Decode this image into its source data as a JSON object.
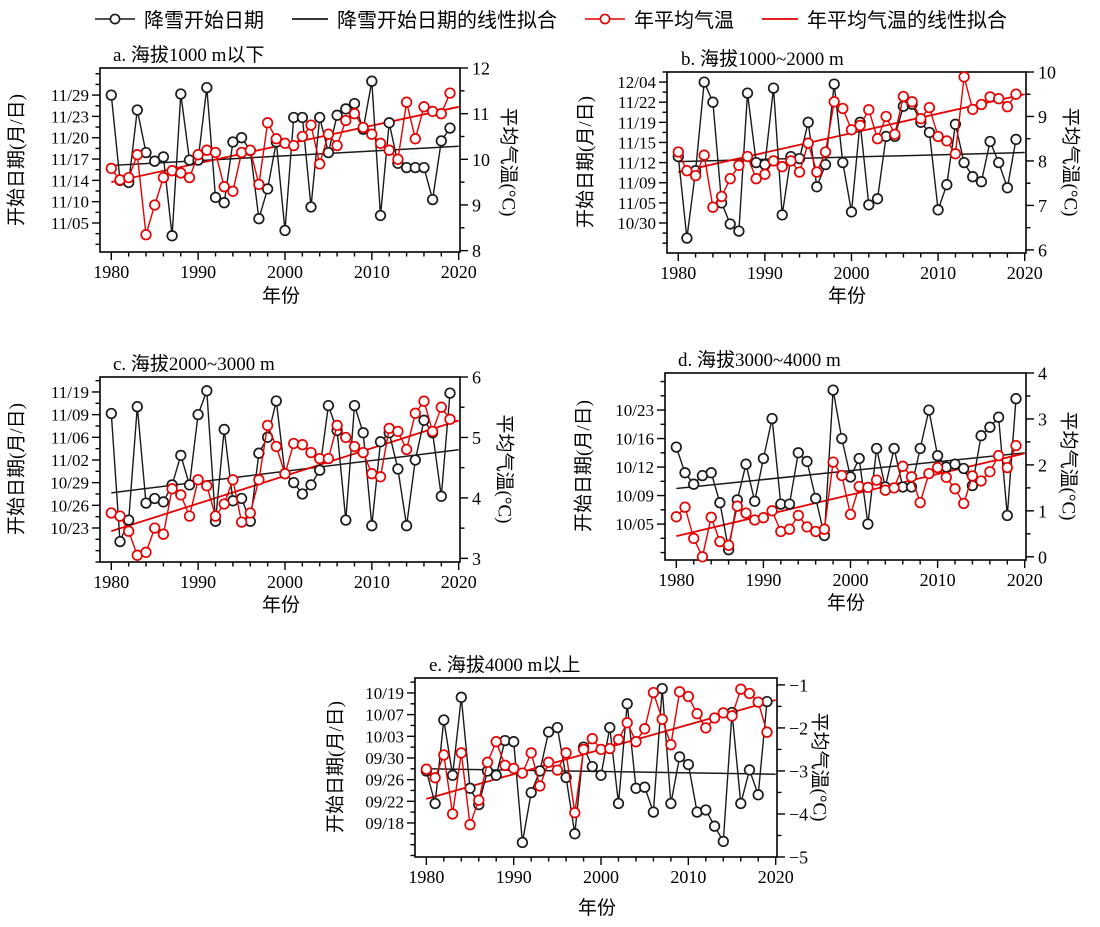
{
  "colors": {
    "snow": "#1a1a1a",
    "temp": "#e60000",
    "axis": "#000000"
  },
  "legend": {
    "items": [
      {
        "label": "降雪开始日期",
        "type": "line-circle",
        "color": "#1a1a1a"
      },
      {
        "label": "降雪开始日期的线性拟合",
        "type": "line",
        "color": "#1a1a1a"
      },
      {
        "label": "年平均气温",
        "type": "line-circle",
        "color": "#e60000"
      },
      {
        "label": "年平均气温的线性拟合",
        "type": "line",
        "color": "#e60000"
      }
    ]
  },
  "chart_data": [
    {
      "id": "a",
      "type": "line",
      "title": "a. 海拔1000 m以下",
      "xlabel": "年份",
      "ylabel_left": "开始日期(月/日)",
      "ylabel_right": "平均气温(°C)",
      "x_ticks": [
        1980,
        1990,
        2000,
        2010,
        2020
      ],
      "x_range": [
        1978.7,
        2020.15
      ],
      "date_tick_labels": [
        "11/05",
        "11/10",
        "11/14",
        "11/17",
        "11/20",
        "11/23",
        "11/29"
      ],
      "date_range": [
        -1.36,
        7.27
      ],
      "temp_ticks": [
        8,
        9,
        10,
        11,
        12
      ],
      "temp_range": [
        7.97,
        12.0
      ],
      "year_start": 1980,
      "snow_date_series_tick_units": [
        6.0,
        2.0,
        1.9,
        5.3,
        3.3,
        2.9,
        3.1,
        -0.6,
        6.05,
        2.95,
        2.95,
        6.35,
        1.2,
        0.95,
        3.8,
        4.0,
        3.4,
        0.2,
        1.6,
        3.8,
        -0.35,
        4.95,
        4.95,
        0.75,
        4.95,
        3.3,
        5.05,
        5.35,
        5.6,
        4.4,
        6.65,
        0.35,
        4.7,
        2.8,
        2.6,
        2.6,
        2.6,
        1.1,
        3.85,
        4.45
      ],
      "temp_series_c": [
        9.8,
        9.55,
        9.6,
        10.1,
        8.35,
        9.0,
        9.6,
        9.75,
        9.7,
        9.6,
        10.1,
        10.2,
        10.15,
        9.4,
        9.3,
        10.15,
        10.2,
        9.45,
        10.8,
        10.45,
        10.35,
        10.3,
        10.5,
        10.75,
        9.9,
        10.55,
        10.3,
        10.85,
        11.0,
        10.7,
        10.55,
        10.35,
        10.2,
        10.0,
        11.25,
        10.45,
        11.15,
        11.05,
        11.0,
        11.45
      ],
      "snow_fit_1980_2020": [
        2.7,
        3.6
      ],
      "temp_fit_1980_2020": [
        9.5,
        11.15
      ]
    },
    {
      "id": "b",
      "type": "line",
      "title": "b. 海拔1000~2000 m",
      "xlabel": "年份",
      "ylabel_left": "开始日期(月/日)",
      "ylabel_right": "平均气温(°C)",
      "x_ticks": [
        1980,
        1990,
        2000,
        2010,
        2020
      ],
      "x_range": [
        1978.7,
        2020.15
      ],
      "date_tick_labels": [
        "10/30",
        "11/05",
        "11/09",
        "11/12",
        "11/15",
        "11/19",
        "11/22",
        "12/04"
      ],
      "date_range": [
        -1.49,
        7.5
      ],
      "temp_ticks": [
        6,
        7,
        8,
        9,
        10
      ],
      "temp_range": [
        5.93,
        10.0
      ],
      "year_start": 1980,
      "snow_date_series_tick_units": [
        3.3,
        -0.75,
        2.6,
        7.0,
        6.0,
        1.0,
        -0.05,
        -0.4,
        6.45,
        3.0,
        2.9,
        6.7,
        0.4,
        3.3,
        3.2,
        5.0,
        1.8,
        2.9,
        6.9,
        3.0,
        0.55,
        5.0,
        0.9,
        1.2,
        4.3,
        4.3,
        5.8,
        5.9,
        5.0,
        4.5,
        0.65,
        1.9,
        4.9,
        3.0,
        2.3,
        2.05,
        4.05,
        3.0,
        1.75,
        4.15
      ],
      "temp_series_c": [
        8.2,
        7.78,
        7.67,
        8.13,
        6.96,
        7.2,
        7.6,
        7.9,
        8.1,
        7.6,
        7.7,
        8.0,
        7.87,
        8.0,
        7.75,
        8.4,
        7.75,
        8.2,
        9.33,
        9.18,
        8.7,
        8.8,
        9.15,
        8.5,
        9.0,
        8.6,
        9.45,
        9.33,
        8.95,
        9.2,
        8.55,
        8.45,
        8.16,
        9.89,
        9.16,
        9.27,
        9.44,
        9.4,
        9.22,
        9.5
      ],
      "snow_fit_1980_2020": [
        3.05,
        3.5
      ],
      "temp_fit_1980_2020": [
        7.75,
        9.5
      ]
    },
    {
      "id": "c",
      "type": "line",
      "title": "c. 海拔2000~3000 m",
      "xlabel": "年份",
      "ylabel_left": "开始日期(月/日)",
      "ylabel_right": "平均气温(°C)",
      "x_ticks": [
        1980,
        1990,
        2000,
        2010,
        2020
      ],
      "x_range": [
        1978.7,
        2020.15
      ],
      "date_tick_labels": [
        "10/23",
        "10/26",
        "10/29",
        "11/02",
        "11/06",
        "11/09",
        "11/19"
      ],
      "date_range": [
        -1.5,
        6.66
      ],
      "temp_ticks": [
        3,
        4,
        5,
        6
      ],
      "temp_range": [
        2.94,
        6.0
      ],
      "year_start": 1980,
      "snow_date_series_tick_units": [
        5.05,
        -0.6,
        0.35,
        5.35,
        1.1,
        1.3,
        1.15,
        1.9,
        3.2,
        1.9,
        5.0,
        6.05,
        0.3,
        4.35,
        1.2,
        1.3,
        0.3,
        3.3,
        4.0,
        5.6,
        2.4,
        2.0,
        1.5,
        1.9,
        2.55,
        5.4,
        4.3,
        0.35,
        5.4,
        4.2,
        0.1,
        3.8,
        4.2,
        2.6,
        0.1,
        3.0,
        4.75,
        4.2,
        1.4,
        5.95
      ],
      "temp_series_c": [
        3.75,
        3.7,
        3.45,
        3.05,
        3.1,
        3.5,
        3.4,
        4.15,
        4.05,
        3.7,
        4.3,
        4.2,
        3.7,
        3.9,
        4.3,
        3.6,
        3.75,
        4.3,
        5.2,
        4.85,
        4.4,
        4.9,
        4.88,
        4.75,
        4.65,
        4.65,
        5.2,
        5.0,
        4.85,
        4.75,
        4.4,
        4.35,
        5.15,
        5.1,
        4.8,
        5.4,
        5.6,
        5.1,
        5.5,
        5.3
      ],
      "snow_fit_1980_2020": [
        1.55,
        3.45
      ],
      "temp_fit_1980_2020": [
        3.45,
        5.28
      ]
    },
    {
      "id": "d",
      "type": "line",
      "title": "d. 海拔3000~4000 m",
      "xlabel": "年份",
      "ylabel_left": "开始日期(月/日)",
      "ylabel_right": "平均气温(°C)",
      "x_ticks": [
        1980,
        1990,
        2000,
        2010,
        2020
      ],
      "x_range": [
        1978.7,
        2020.15
      ],
      "date_tick_labels": [
        "10/05",
        "10/09",
        "10/12",
        "10/16",
        "10/23"
      ],
      "date_range": [
        -1.26,
        5.3
      ],
      "temp_ticks": [
        0,
        1,
        2,
        3,
        4
      ],
      "temp_range": [
        -0.07,
        4.0
      ],
      "year_start": 1980,
      "snow_date_series_tick_units": [
        2.7,
        1.8,
        1.4,
        1.7,
        1.8,
        0.75,
        -0.9,
        0.85,
        2.1,
        0.8,
        2.3,
        3.7,
        0.7,
        0.7,
        2.5,
        2.2,
        0.9,
        -0.4,
        4.7,
        3.0,
        1.65,
        2.3,
        0.0,
        2.65,
        1.3,
        2.65,
        1.3,
        1.3,
        2.65,
        4.0,
        2.4,
        2.0,
        2.1,
        1.95,
        1.35,
        3.1,
        3.4,
        3.75,
        0.3,
        4.4
      ],
      "temp_series_c": [
        0.87,
        1.08,
        0.4,
        0.0,
        0.86,
        0.33,
        0.25,
        1.1,
        0.95,
        0.8,
        0.85,
        1.0,
        0.55,
        0.6,
        0.9,
        0.65,
        0.55,
        0.6,
        2.06,
        1.77,
        0.92,
        1.53,
        1.51,
        1.67,
        1.45,
        1.5,
        1.97,
        1.74,
        1.18,
        1.81,
        1.94,
        1.73,
        1.48,
        1.16,
        1.76,
        1.65,
        1.85,
        2.2,
        1.94,
        2.42
      ],
      "snow_fit_1980_2020": [
        1.25,
        2.5
      ],
      "temp_fit_1980_2020": [
        0.45,
        2.25
      ]
    },
    {
      "id": "e",
      "type": "line",
      "title": "e. 海拔4000 m以上",
      "xlabel": "年份",
      "ylabel_left": "开始日期(月/日)",
      "ylabel_right": "平均气温(°C)",
      "x_ticks": [
        1980,
        1990,
        2000,
        2010,
        2020
      ],
      "x_range": [
        1978.7,
        2020.15
      ],
      "date_tick_labels": [
        "09/18",
        "09/22",
        "09/26",
        "09/30",
        "10/03",
        "10/07",
        "10/19"
      ],
      "date_range": [
        -1.57,
        6.69
      ],
      "temp_ticks": [
        -5,
        -4,
        -3,
        -2,
        -1
      ],
      "temp_range": [
        -5.0,
        -0.84
      ],
      "year_start": 1980,
      "snow_date_series_tick_units": [
        2.4,
        0.9,
        4.75,
        2.2,
        5.8,
        1.6,
        0.85,
        2.4,
        2.2,
        3.8,
        3.75,
        -0.9,
        1.4,
        2.4,
        4.2,
        4.4,
        2.1,
        -0.5,
        3.5,
        2.6,
        2.2,
        4.4,
        0.9,
        5.5,
        1.6,
        1.65,
        0.5,
        6.2,
        0.9,
        3.05,
        2.7,
        0.5,
        0.6,
        -0.15,
        -0.85,
        5.1,
        0.9,
        2.45,
        1.3,
        5.6
      ],
      "temp_series_c": [
        -2.96,
        -3.16,
        -2.63,
        -4.0,
        -2.58,
        -4.25,
        -3.68,
        -2.8,
        -2.32,
        -2.87,
        -2.94,
        -3.05,
        -2.58,
        -3.35,
        -2.8,
        -2.98,
        -2.58,
        -3.97,
        -2.5,
        -2.25,
        -2.5,
        -2.48,
        -2.27,
        -1.88,
        -2.32,
        -2.02,
        -1.18,
        -1.8,
        -2.39,
        -1.16,
        -1.27,
        -1.67,
        -2.0,
        -1.77,
        -1.65,
        -1.72,
        -1.1,
        -1.2,
        -1.4,
        -2.1
      ],
      "snow_fit_1980_2020": [
        2.5,
        2.25
      ],
      "temp_fit_1980_2020": [
        -3.65,
        -1.35
      ]
    }
  ]
}
